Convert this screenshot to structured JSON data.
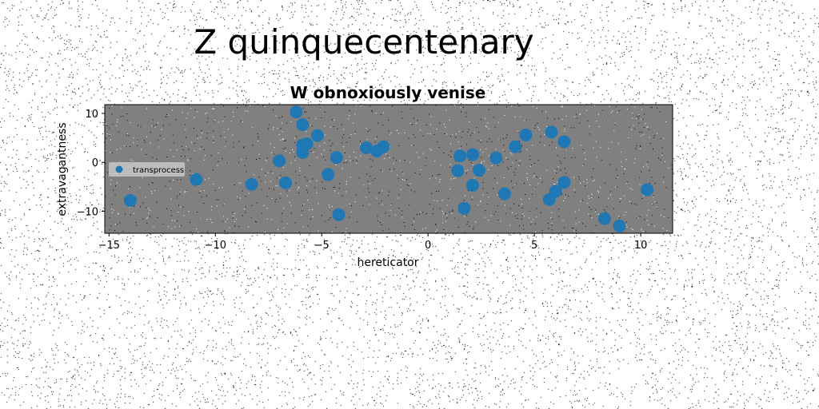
{
  "suptitle": "Z quinquecentenary",
  "colors": {
    "marker": "#1f77b4",
    "axes_bg": "#808080"
  },
  "chart_data": {
    "type": "scatter",
    "title": "W obnoxiously venise",
    "xlabel": "hereticator",
    "ylabel": "extravagantness",
    "xlim": [
      -15.2,
      11.5
    ],
    "ylim": [
      -14.5,
      11.8
    ],
    "xticks": [
      -15,
      -10,
      -5,
      0,
      5,
      10
    ],
    "yticks": [
      -10,
      0,
      10
    ],
    "grid": false,
    "legend_position": "center-left",
    "series": [
      {
        "name": "transprocess",
        "points": [
          [
            -14.0,
            -7.8
          ],
          [
            -10.9,
            -3.5
          ],
          [
            -8.3,
            -4.5
          ],
          [
            -7.0,
            0.3
          ],
          [
            -6.7,
            -4.2
          ],
          [
            -6.2,
            10.3
          ],
          [
            -5.9,
            7.7
          ],
          [
            -5.9,
            3.5
          ],
          [
            -5.9,
            2.0
          ],
          [
            -5.7,
            3.8
          ],
          [
            -5.2,
            5.5
          ],
          [
            -4.7,
            -2.5
          ],
          [
            -4.3,
            1.0
          ],
          [
            -4.2,
            -10.7
          ],
          [
            -2.9,
            3.0
          ],
          [
            -2.4,
            2.3
          ],
          [
            -2.1,
            3.2
          ],
          [
            1.4,
            -1.7
          ],
          [
            1.5,
            1.3
          ],
          [
            1.7,
            -9.4
          ],
          [
            2.1,
            1.6
          ],
          [
            2.1,
            -4.7
          ],
          [
            2.4,
            -1.6
          ],
          [
            3.2,
            0.9
          ],
          [
            3.6,
            -6.4
          ],
          [
            4.1,
            3.2
          ],
          [
            4.6,
            5.6
          ],
          [
            5.7,
            -7.6
          ],
          [
            5.8,
            6.2
          ],
          [
            6.0,
            -5.9
          ],
          [
            6.4,
            4.2
          ],
          [
            6.4,
            -4.1
          ],
          [
            8.3,
            -11.5
          ],
          [
            9.0,
            -13.0
          ],
          [
            10.3,
            -5.6
          ]
        ]
      }
    ]
  }
}
